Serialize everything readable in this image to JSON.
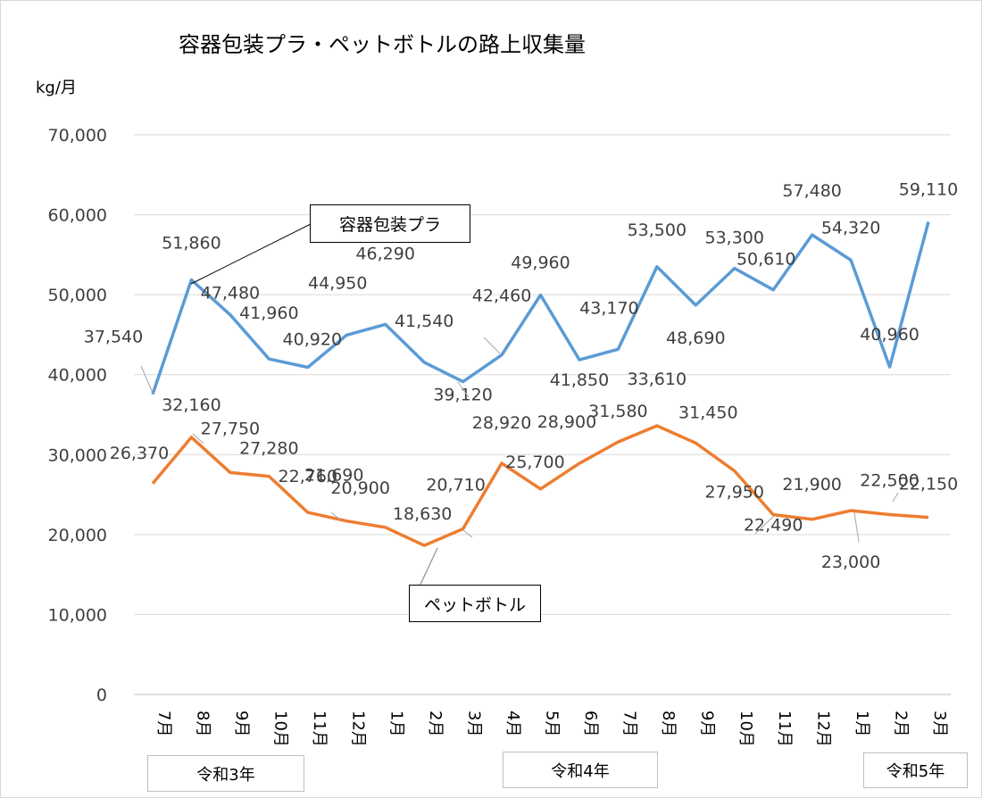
{
  "chart_data": {
    "type": "line",
    "title": "容器包装プラ・ペットボトルの路上収集量",
    "ylabel": "kg/月",
    "ylim": [
      0,
      70000
    ],
    "yticks": [
      "0",
      "10,000",
      "20,000",
      "30,000",
      "40,000",
      "50,000",
      "60,000",
      "70,000"
    ],
    "categories": [
      "7月",
      "8月",
      "9月",
      "10月",
      "11月",
      "12月",
      "1月",
      "2月",
      "3月",
      "4月",
      "5月",
      "6月",
      "7月",
      "8月",
      "9月",
      "10月",
      "11月",
      "12月",
      "1月",
      "2月",
      "3月"
    ],
    "series": [
      {
        "name": "容器包装プラ",
        "color": "#5b9bd5",
        "values": [
          37540,
          51860,
          47480,
          41960,
          40920,
          44950,
          46290,
          41540,
          39120,
          42460,
          49960,
          41850,
          43170,
          53500,
          48690,
          53300,
          50610,
          57480,
          54320,
          40960,
          59110
        ],
        "labels": [
          "37,540",
          "51,860",
          "47,480",
          "41,960",
          "40,920",
          "44,950",
          "46,290",
          "41,540",
          "39,120",
          "42,460",
          "49,960",
          "41,850",
          "43,170",
          "53,500",
          "48,690",
          "53,300",
          "50,610",
          "57,480",
          "54,320",
          "40,960",
          "59,110"
        ]
      },
      {
        "name": "ペットボトル",
        "color": "#ed7d31",
        "values": [
          26370,
          32160,
          27750,
          27280,
          22760,
          21690,
          20900,
          18630,
          20710,
          28920,
          25700,
          28900,
          31580,
          33610,
          31450,
          27950,
          22490,
          21900,
          23000,
          22500,
          22150
        ],
        "labels": [
          "26,370",
          "32,160",
          "27,750",
          "27,280",
          "22,760",
          "21,690",
          "20,900",
          "18,630",
          "20,710",
          "28,920",
          "25,700",
          "28,900",
          "31,580",
          "33,610",
          "31,450",
          "27,950",
          "22,490",
          "21,900",
          "23,000",
          "22,500",
          "22,150"
        ]
      }
    ],
    "legend": "callouts",
    "grid": true
  },
  "eras": [
    "令和3年",
    "令和4年",
    "令和5年"
  ]
}
